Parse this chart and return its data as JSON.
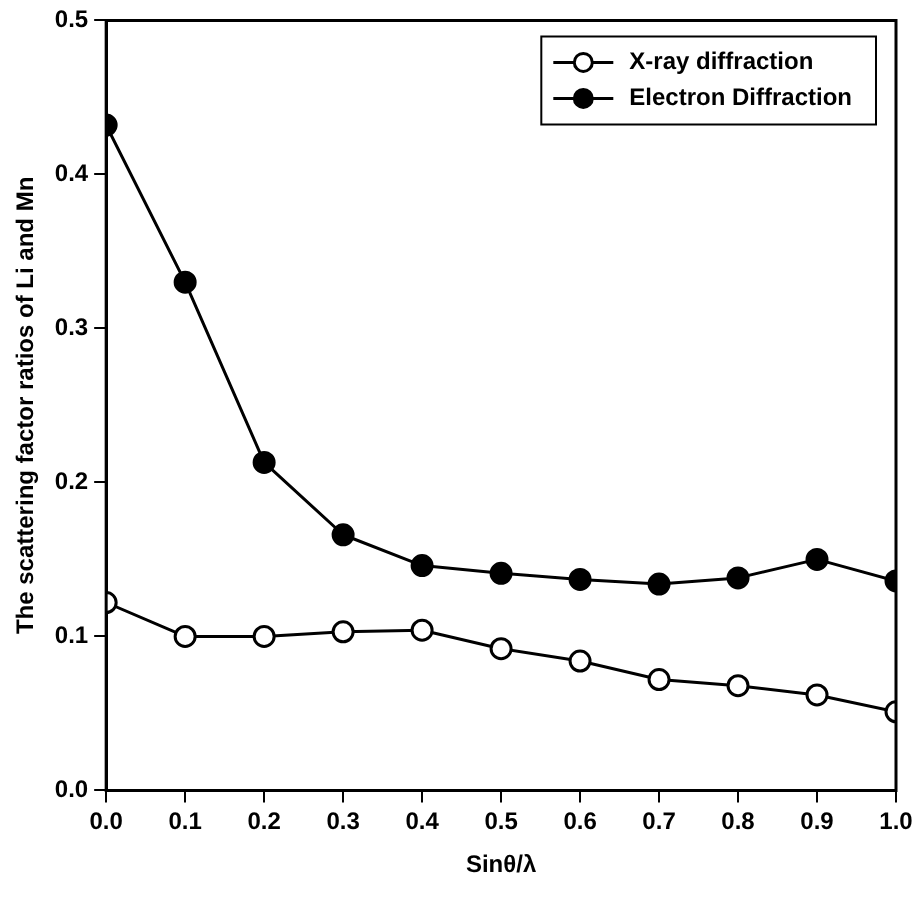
{
  "chart_data": {
    "type": "line",
    "xlabel": "Sinθ/λ",
    "ylabel": "The scattering factor ratios of Li and Mn",
    "x": [
      0,
      0.1,
      0.2,
      0.3,
      0.4,
      0.5,
      0.6,
      0.7,
      0.8,
      0.9,
      1.0
    ],
    "series": [
      {
        "name": "X-ray diffraction",
        "color": "#000000",
        "values": [
          0.122,
          0.1,
          0.1,
          0.103,
          0.104,
          0.092,
          0.084,
          0.072,
          0.068,
          0.062,
          0.051
        ]
      },
      {
        "name": "Electron Diffraction",
        "color": "#000000",
        "values": [
          0.432,
          0.33,
          0.213,
          0.166,
          0.146,
          0.141,
          0.137,
          0.134,
          0.138,
          0.15,
          0.136
        ]
      }
    ],
    "xlim": [
      0,
      1
    ],
    "ylim": [
      0,
      0.5
    ],
    "xticks": [
      {
        "value": 0,
        "label": "0.0"
      },
      {
        "value": 0.1,
        "label": "0.1"
      },
      {
        "value": 0.2,
        "label": "0.2"
      },
      {
        "value": 0.3,
        "label": "0.3"
      },
      {
        "value": 0.4,
        "label": "0.4"
      },
      {
        "value": 0.5,
        "label": "0.5"
      },
      {
        "value": 0.6,
        "label": "0.6"
      },
      {
        "value": 0.7,
        "label": "0.7"
      },
      {
        "value": 0.8,
        "label": "0.8"
      },
      {
        "value": 0.9,
        "label": "0.9"
      },
      {
        "value": 1,
        "label": "1.0"
      }
    ],
    "yticks": [
      {
        "value": 0,
        "label": "0.0"
      },
      {
        "value": 0.1,
        "label": "0.1"
      },
      {
        "value": 0.2,
        "label": "0.2"
      },
      {
        "value": 0.3,
        "label": "0.3"
      },
      {
        "value": 0.4,
        "label": "0.4"
      },
      {
        "value": 0.5,
        "label": "0.5"
      }
    ],
    "grid": false,
    "legend": "top right",
    "marker": "circle",
    "line_style": "solid"
  }
}
